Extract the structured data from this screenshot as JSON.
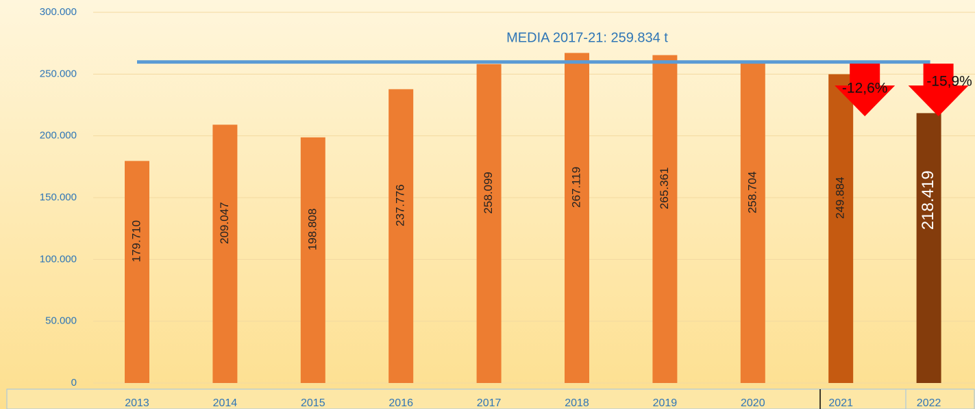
{
  "chart_data": {
    "type": "bar",
    "categories": [
      "2013",
      "2014",
      "2015",
      "2016",
      "2017",
      "2018",
      "2019",
      "2020",
      "2021",
      "2022"
    ],
    "values": [
      179710,
      209047,
      198808,
      237776,
      258099,
      267119,
      265361,
      258704,
      249884,
      218419
    ],
    "value_labels": [
      "179.710",
      "209.047",
      "198.808",
      "237.776",
      "258.099",
      "267.119",
      "265.361",
      "258.704",
      "249.884",
      "218.419"
    ],
    "colors": [
      "#ed7d31",
      "#ed7d31",
      "#ed7d31",
      "#ed7d31",
      "#ed7d31",
      "#ed7d31",
      "#ed7d31",
      "#ed7d31",
      "#c55a11",
      "#843c0c"
    ],
    "ylim": [
      0,
      300000
    ],
    "yticks": [
      0,
      {
        "value": 50000,
        "label": "50.000"
      },
      {
        "value": 100000,
        "label": "100.000"
      },
      {
        "value": 150000,
        "label": "150.000"
      },
      {
        "value": 200000,
        "label": "200.000"
      },
      {
        "value": 250000,
        "label": "250.000"
      },
      {
        "value": 300000,
        "label": "300.000"
      }
    ],
    "grid": true,
    "mean": {
      "label": "MEDIA 2017-21: 259.834 t",
      "value": 259834,
      "color": "#5b9bd5"
    },
    "annotations": [
      "-12,6%",
      "-15,9%"
    ]
  }
}
